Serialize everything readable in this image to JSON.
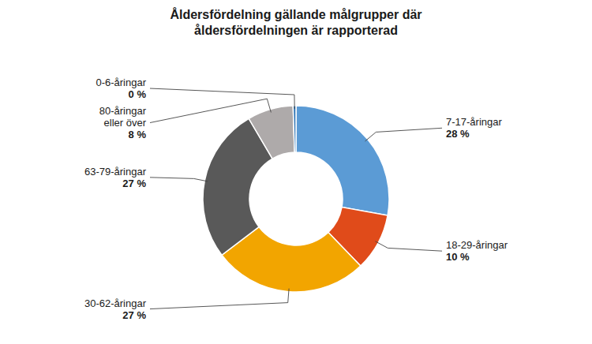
{
  "chart_data": {
    "type": "donut",
    "title": "Åldersfördelning gällande målgrupper där\nåldersfördelningen är rapporterad",
    "categories": [
      "7-17-åringar",
      "18-29-åringar",
      "30-62-åringar",
      "63-79-åringar",
      "80-åringar\neller över",
      "0-6-åringar"
    ],
    "values": [
      28,
      10,
      27,
      27,
      8,
      0.5
    ],
    "value_labels": [
      "28 %",
      "10 %",
      "27 %",
      "27 %",
      "8 %",
      "0 %"
    ],
    "colors": [
      "#5B9BD5",
      "#E04B1A",
      "#F2A500",
      "#595959",
      "#AEAAAA",
      "#2E74B5"
    ],
    "data_labels": true
  }
}
